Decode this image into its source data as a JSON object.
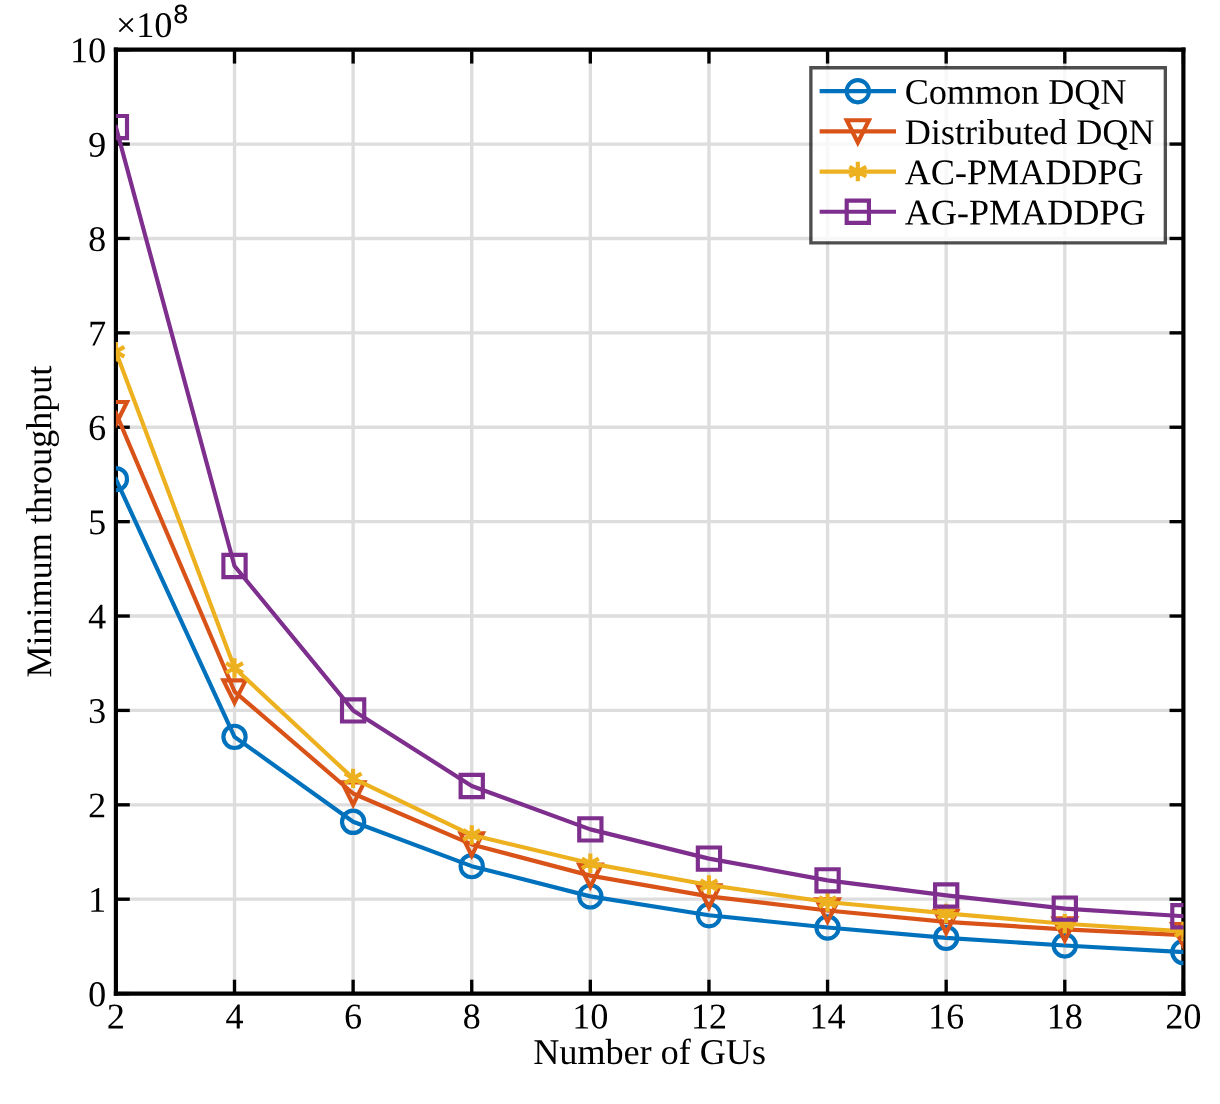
{
  "chart_data": {
    "type": "line",
    "xlabel": "Number of GUs",
    "ylabel": "Minimum throughput",
    "x": [
      2,
      4,
      6,
      8,
      10,
      12,
      14,
      16,
      18,
      20
    ],
    "series": [
      {
        "name": "Common DQN",
        "color": "#0072bd",
        "marker": "circle",
        "values": [
          5.45,
          2.72,
          1.82,
          1.35,
          1.03,
          0.83,
          0.7,
          0.59,
          0.51,
          0.44
        ]
      },
      {
        "name": "Distributed DQN",
        "color": "#d95319",
        "marker": "triangle",
        "values": [
          6.15,
          3.2,
          2.12,
          1.58,
          1.25,
          1.03,
          0.88,
          0.76,
          0.68,
          0.62
        ]
      },
      {
        "name": "AC-PMADDPG",
        "color": "#edb120",
        "marker": "cross",
        "values": [
          6.8,
          3.45,
          2.28,
          1.68,
          1.38,
          1.15,
          0.97,
          0.85,
          0.74,
          0.66
        ]
      },
      {
        "name": "AG-PMADDPG",
        "color": "#7e2f8e",
        "marker": "square",
        "values": [
          9.18,
          4.53,
          3.0,
          2.2,
          1.74,
          1.43,
          1.2,
          1.04,
          0.9,
          0.82
        ]
      }
    ],
    "annotations": [
      "×10$^{8}$"
    ],
    "xlim": [
      2,
      20
    ],
    "xticks": [
      2,
      4,
      6,
      8,
      10,
      12,
      14,
      16,
      18,
      20
    ],
    "ylim": [
      0,
      10
    ],
    "yticks": [
      0,
      1,
      2,
      3,
      4,
      5,
      6,
      7,
      8,
      9,
      10
    ],
    "grid": true,
    "legend": "top right",
    "line_style": "solid"
  }
}
